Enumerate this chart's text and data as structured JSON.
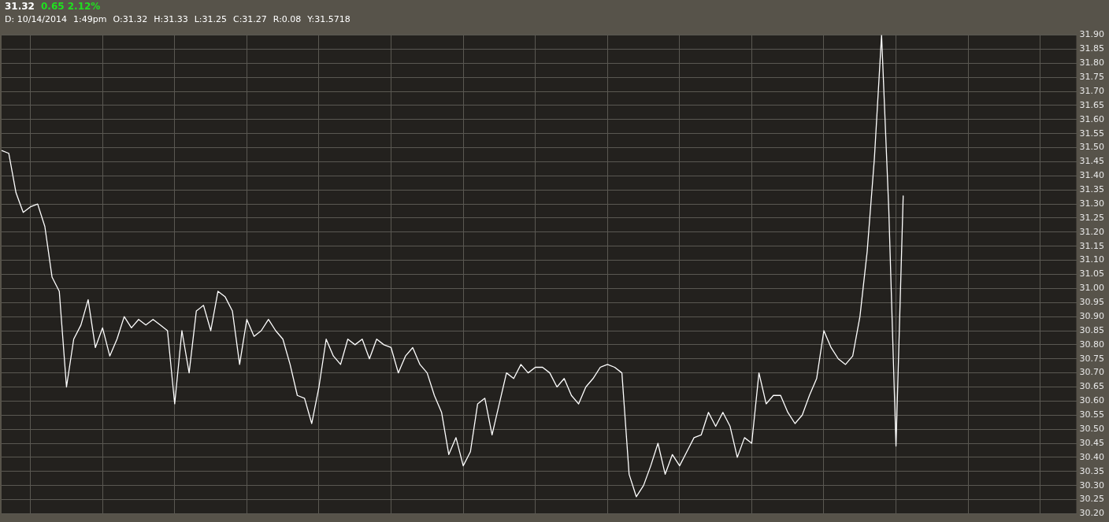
{
  "chart_data": {
    "type": "line",
    "title": "31.32",
    "subtitle": "0.65 2.12%",
    "annotations": [
      "D: 10/14/2014",
      "1:49pm",
      "O:31.32",
      "H:31.33",
      "L:31.25",
      "C:31.27",
      "R:0.08",
      "Y:31.5718"
    ],
    "categories": [
      null,
      null,
      null,
      null,
      null,
      null,
      null,
      null,
      null,
      null,
      null,
      null,
      null,
      null,
      null,
      null,
      null,
      null,
      null,
      null,
      null,
      null,
      null,
      null,
      null,
      null,
      null,
      null,
      null,
      null,
      null,
      null,
      null,
      null,
      null,
      null,
      null,
      null,
      null,
      null,
      null,
      null,
      null,
      null,
      null,
      null,
      null,
      null,
      null,
      null,
      null,
      null,
      null,
      null,
      null,
      null,
      null,
      null,
      null,
      null,
      null,
      null,
      null,
      null,
      null,
      null,
      null,
      null,
      null,
      null,
      null,
      null,
      null,
      null,
      null,
      null,
      null,
      null,
      null,
      null,
      null,
      null,
      null,
      null,
      null,
      null,
      null,
      null,
      null,
      null,
      null,
      null,
      null,
      null,
      null,
      null,
      null,
      null,
      null,
      null,
      null,
      null,
      null,
      null,
      null,
      null,
      null,
      null,
      null,
      null,
      null,
      null,
      null,
      null,
      null,
      null,
      null,
      null,
      null,
      null,
      null,
      null,
      null,
      null,
      null,
      null,
      null,
      null,
      null,
      null,
      null,
      null,
      null,
      null,
      null,
      null,
      null,
      null,
      null,
      null,
      null,
      null,
      null,
      null,
      null,
      null,
      null,
      null,
      null,
      null
    ],
    "series": [
      {
        "color": "#ffffff",
        "values": [
          31.49,
          31.48,
          31.34,
          31.27,
          31.29,
          31.3,
          31.22,
          31.04,
          30.99,
          30.65,
          30.82,
          30.87,
          30.96,
          30.79,
          30.86,
          30.76,
          30.82,
          30.9,
          30.86,
          30.89,
          30.87,
          30.89,
          30.87,
          30.85,
          30.59,
          30.85,
          30.7,
          30.92,
          30.94,
          30.85,
          30.99,
          30.97,
          30.92,
          30.73,
          30.89,
          30.83,
          30.85,
          30.89,
          30.85,
          30.82,
          30.73,
          30.62,
          30.61,
          30.52,
          30.65,
          30.82,
          30.76,
          30.73,
          30.82,
          30.8,
          30.82,
          30.75,
          30.82,
          30.8,
          30.79,
          30.7,
          30.76,
          30.79,
          30.73,
          30.7,
          30.62,
          30.56,
          30.41,
          30.47,
          30.37,
          30.42,
          30.59,
          30.61,
          30.48,
          30.59,
          30.7,
          30.68,
          30.73,
          30.7,
          30.72,
          30.72,
          30.7,
          30.65,
          30.68,
          30.62,
          30.59,
          30.65,
          30.68,
          30.72,
          30.73,
          30.72,
          30.7,
          30.34,
          30.26,
          30.3,
          30.37,
          30.45,
          30.34,
          30.41,
          30.37,
          30.42,
          30.47,
          30.48,
          30.56,
          30.51,
          30.56,
          30.51,
          30.4,
          30.47,
          30.45,
          30.7,
          30.59,
          30.62,
          30.62,
          30.56,
          30.52,
          30.55,
          30.62,
          30.68,
          30.85,
          30.79,
          30.75,
          30.73,
          30.76,
          30.9,
          31.13,
          31.46,
          31.9,
          31.28,
          30.44,
          31.33,
          null,
          null,
          null,
          null,
          null,
          null,
          null,
          null,
          null,
          null,
          null,
          null,
          null,
          null,
          null,
          null,
          null,
          null,
          null,
          null,
          null,
          null,
          null,
          null
        ]
      }
    ],
    "ylim": [
      30.2,
      31.9
    ],
    "yticks": [
      {
        "value": 30.2,
        "label": "30.20"
      },
      {
        "value": 30.25,
        "label": "30.25"
      },
      {
        "value": 30.3,
        "label": "30.30"
      },
      {
        "value": 30.35,
        "label": "30.35"
      },
      {
        "value": 30.4,
        "label": "30.40"
      },
      {
        "value": 30.45,
        "label": "30.45"
      },
      {
        "value": 30.5,
        "label": "30.50"
      },
      {
        "value": 30.55,
        "label": "30.55"
      },
      {
        "value": 30.6,
        "label": "30.60"
      },
      {
        "value": 30.65,
        "label": "30.65"
      },
      {
        "value": 30.7,
        "label": "30.70"
      },
      {
        "value": 30.75,
        "label": "30.75"
      },
      {
        "value": 30.8,
        "label": "30.80"
      },
      {
        "value": 30.85,
        "label": "30.85"
      },
      {
        "value": 30.9,
        "label": "30.90"
      },
      {
        "value": 30.95,
        "label": "30.95"
      },
      {
        "value": 31.0,
        "label": "31.00"
      },
      {
        "value": 31.05,
        "label": "31.05"
      },
      {
        "value": 31.1,
        "label": "31.10"
      },
      {
        "value": 31.15,
        "label": "31.15"
      },
      {
        "value": 31.2,
        "label": "31.20"
      },
      {
        "value": 31.25,
        "label": "31.25"
      },
      {
        "value": 31.3,
        "label": "31.30"
      },
      {
        "value": 31.35,
        "label": "31.35"
      },
      {
        "value": 31.4,
        "label": "31.40"
      },
      {
        "value": 31.45,
        "label": "31.45"
      },
      {
        "value": 31.5,
        "label": "31.50"
      },
      {
        "value": 31.55,
        "label": "31.55"
      },
      {
        "value": 31.6,
        "label": "31.60"
      },
      {
        "value": 31.65,
        "label": "31.65"
      },
      {
        "value": 31.7,
        "label": "31.70"
      },
      {
        "value": 31.75,
        "label": "31.75"
      },
      {
        "value": 31.8,
        "label": "31.80"
      },
      {
        "value": 31.85,
        "label": "31.85"
      },
      {
        "value": 31.9,
        "label": "31.90"
      }
    ],
    "grid": true,
    "legend": false,
    "marker": "none",
    "line_style": "solid",
    "tick_labels": "y"
  }
}
